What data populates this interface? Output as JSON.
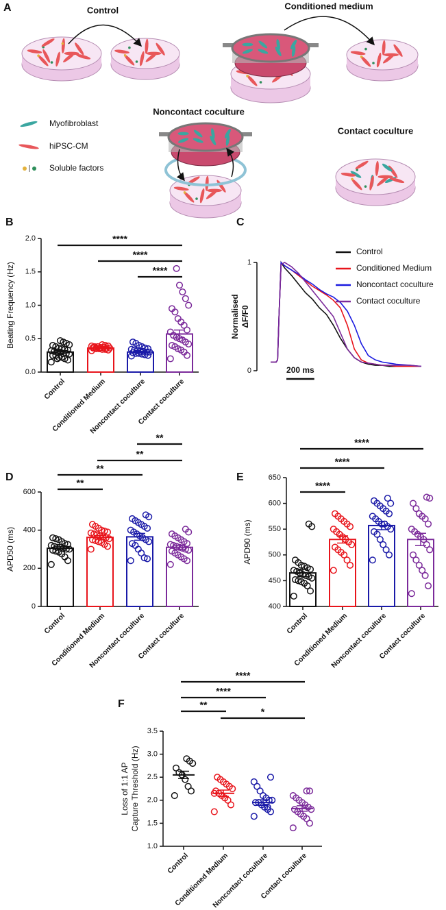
{
  "diagram": {
    "panel": "A",
    "labels": {
      "control": "Control",
      "conditioned": "Conditioned medium",
      "noncontact": "Noncontact coculture",
      "contact": "Contact coculture"
    },
    "legend": [
      "Myofibroblast",
      "hiPSC-CM",
      "Soluble factors"
    ]
  },
  "chart_data": [
    {
      "type": "bar",
      "panel": "B",
      "ylabel": [
        "Beating  Frequency (Hz)"
      ],
      "categories": [
        "Control",
        "Conditioned Medium",
        "Noncontact coculture",
        "Contact coculture"
      ],
      "colors": [
        "#111111",
        "#e8141b",
        "#1a1aa8",
        "#7b2a9a"
      ],
      "values": [
        0.3,
        0.36,
        0.3,
        0.57
      ],
      "errors": [
        0.02,
        0.01,
        0.01,
        0.06
      ],
      "points": [
        [
          0.15,
          0.18,
          0.2,
          0.22,
          0.22,
          0.25,
          0.25,
          0.27,
          0.28,
          0.28,
          0.3,
          0.3,
          0.31,
          0.32,
          0.33,
          0.34,
          0.35,
          0.36,
          0.38,
          0.4,
          0.41,
          0.43,
          0.45,
          0.47,
          0.2
        ],
        [
          0.32,
          0.33,
          0.34,
          0.34,
          0.35,
          0.35,
          0.36,
          0.36,
          0.36,
          0.37,
          0.37,
          0.38,
          0.38,
          0.39,
          0.39,
          0.4,
          0.41,
          0.35,
          0.36,
          0.37
        ],
        [
          0.24,
          0.25,
          0.26,
          0.27,
          0.28,
          0.28,
          0.29,
          0.3,
          0.3,
          0.31,
          0.31,
          0.32,
          0.33,
          0.34,
          0.35,
          0.36,
          0.38,
          0.4,
          0.43,
          0.45
        ],
        [
          0.2,
          0.25,
          0.3,
          0.33,
          0.35,
          0.38,
          0.4,
          0.42,
          0.45,
          0.48,
          0.5,
          0.52,
          0.55,
          0.6,
          0.63,
          0.7,
          0.75,
          0.8,
          0.9,
          0.95,
          1.0,
          1.1,
          1.2,
          1.3,
          1.55
        ]
      ],
      "ylim": [
        0,
        2
      ],
      "yticks": [
        {
          "value": 0,
          "label": "0.0"
        },
        0.5,
        {
          "value": 1,
          "label": "1.0"
        },
        1.5,
        {
          "value": 2,
          "label": "2.0"
        }
      ],
      "significance": [
        {
          "label": "****",
          "span": [
            0,
            3
          ]
        },
        {
          "label": "****",
          "span": [
            1,
            3
          ]
        },
        {
          "label": "****",
          "span": [
            2,
            3
          ]
        }
      ]
    },
    {
      "type": "line",
      "panel": "C",
      "ylabel": [
        "Normalised",
        "ΔF/F0"
      ],
      "x": [
        0,
        40,
        50,
        60,
        75,
        100,
        150,
        200,
        250,
        300,
        350,
        400,
        450,
        500,
        550,
        600,
        650,
        700,
        750,
        800,
        850,
        900,
        1000,
        1080
      ],
      "xlim": [
        0,
        1080
      ],
      "ylim": [
        0,
        1
      ],
      "yticks": [
        0,
        1
      ],
      "scalebar": {
        "value": 200,
        "label": "200 ms"
      },
      "series": [
        {
          "name": "Control",
          "color": "#111111",
          "values": [
            0.08,
            0.08,
            0.1,
            0.5,
            1.0,
            0.95,
            0.88,
            0.8,
            0.72,
            0.66,
            0.58,
            0.52,
            0.42,
            0.3,
            0.2,
            0.12,
            0.08,
            0.06,
            0.05,
            0.05,
            0.04,
            0.04,
            0.04,
            0.04
          ]
        },
        {
          "name": "Conditioned Medium",
          "color": "#e8141b",
          "values": [
            0.08,
            0.08,
            0.1,
            0.5,
            1.0,
            0.97,
            0.93,
            0.88,
            0.83,
            0.78,
            0.74,
            0.7,
            0.65,
            0.58,
            0.42,
            0.2,
            0.1,
            0.07,
            0.06,
            0.05,
            0.05,
            0.04,
            0.04,
            0.04
          ]
        },
        {
          "name": "Noncontact coculture",
          "color": "#1a1ae0",
          "values": [
            0.08,
            0.08,
            0.1,
            0.5,
            1.0,
            0.97,
            0.93,
            0.89,
            0.84,
            0.8,
            0.75,
            0.71,
            0.68,
            0.63,
            0.55,
            0.42,
            0.25,
            0.14,
            0.1,
            0.08,
            0.07,
            0.06,
            0.05,
            0.04
          ]
        },
        {
          "name": "Contact coculture",
          "color": "#7b2a9a",
          "values": [
            0.08,
            0.08,
            0.1,
            0.5,
            0.98,
            1.0,
            0.96,
            0.9,
            0.82,
            0.74,
            0.66,
            0.58,
            0.5,
            0.35,
            0.2,
            0.12,
            0.08,
            0.07,
            0.06,
            0.05,
            0.05,
            0.05,
            0.05,
            0.04
          ]
        }
      ]
    },
    {
      "type": "bar",
      "panel": "D",
      "ylabel": [
        "APD50 (ms)"
      ],
      "categories": [
        "Control",
        "Conditioned Medium",
        "Noncontact coculture",
        "Contact coculture"
      ],
      "colors": [
        "#111111",
        "#e8141b",
        "#1a1aa8",
        "#7b2a9a"
      ],
      "values": [
        305,
        362,
        365,
        310
      ],
      "errors": [
        8,
        10,
        18,
        10
      ],
      "points": [
        [
          220,
          240,
          260,
          275,
          285,
          290,
          295,
          300,
          300,
          305,
          310,
          310,
          315,
          320,
          325,
          330,
          340,
          350,
          355,
          360
        ],
        [
          300,
          315,
          325,
          335,
          340,
          345,
          350,
          355,
          360,
          365,
          370,
          375,
          380,
          385,
          390,
          395,
          400,
          410,
          420,
          430
        ],
        [
          240,
          250,
          255,
          280,
          300,
          320,
          330,
          340,
          350,
          360,
          370,
          380,
          390,
          400,
          410,
          420,
          430,
          440,
          450,
          460,
          470,
          480
        ],
        [
          220,
          240,
          250,
          260,
          270,
          280,
          290,
          295,
          300,
          305,
          310,
          315,
          320,
          325,
          330,
          340,
          350,
          360,
          370,
          380,
          390,
          405
        ]
      ],
      "ylim": [
        0,
        600
      ],
      "yticks": [
        0,
        200,
        400,
        600
      ],
      "significance": [
        {
          "label": "**",
          "span": [
            0,
            1
          ]
        },
        {
          "label": "**",
          "span": [
            0,
            2
          ]
        },
        {
          "label": "**",
          "span": [
            1,
            3
          ]
        },
        {
          "label": "**",
          "span": [
            2,
            3
          ]
        }
      ]
    },
    {
      "type": "bar",
      "panel": "E",
      "ylabel": [
        "APD90 (ms)"
      ],
      "categories": [
        "Control",
        "Conditioned Medium",
        "Noncontact coculture",
        "Contact coculture"
      ],
      "colors": [
        "#111111",
        "#e8141b",
        "#1a1aa8",
        "#7b2a9a"
      ],
      "values": [
        465,
        530,
        557,
        530
      ],
      "errors": [
        7,
        7,
        8,
        12
      ],
      "points": [
        [
          420,
          430,
          440,
          445,
          448,
          450,
          452,
          455,
          458,
          460,
          462,
          465,
          468,
          470,
          472,
          475,
          478,
          480,
          485,
          490,
          555,
          560
        ],
        [
          470,
          480,
          490,
          500,
          505,
          510,
          515,
          520,
          525,
          530,
          535,
          540,
          545,
          550,
          555,
          560,
          565,
          570,
          575,
          580
        ],
        [
          490,
          500,
          510,
          520,
          530,
          540,
          545,
          550,
          555,
          560,
          560,
          565,
          570,
          575,
          580,
          585,
          590,
          595,
          600,
          605,
          600,
          610
        ],
        [
          425,
          440,
          460,
          470,
          480,
          490,
          500,
          510,
          520,
          530,
          535,
          540,
          545,
          550,
          560,
          570,
          575,
          580,
          590,
          600,
          610,
          612
        ]
      ],
      "ylim": [
        400,
        650
      ],
      "yticks": [
        400,
        450,
        500,
        550,
        600,
        650
      ],
      "significance": [
        {
          "label": "****",
          "span": [
            0,
            1
          ]
        },
        {
          "label": "****",
          "span": [
            0,
            2
          ]
        },
        {
          "label": "****",
          "span": [
            0,
            3
          ]
        }
      ]
    },
    {
      "type": "dot",
      "panel": "F",
      "ylabel": [
        "Loss of 1:1 AP",
        "Capture Threshold (Hz)"
      ],
      "categories": [
        "Control",
        "Conditioned Medium",
        "Noncontact coculture",
        "Contact coculture"
      ],
      "colors": [
        "#111111",
        "#e8141b",
        "#1a1aa8",
        "#7b2a9a"
      ],
      "values": [
        2.55,
        2.15,
        1.95,
        1.82
      ],
      "errors": [
        0.08,
        0.07,
        0.06,
        0.06
      ],
      "points": [
        [
          2.1,
          2.2,
          2.3,
          2.45,
          2.55,
          2.6,
          2.7,
          2.8,
          2.85,
          2.9
        ],
        [
          1.75,
          1.9,
          2.0,
          2.05,
          2.1,
          2.15,
          2.2,
          2.25,
          2.3,
          2.35,
          2.4,
          2.45,
          2.5,
          2.15
        ],
        [
          1.65,
          1.75,
          1.8,
          1.85,
          1.9,
          1.95,
          1.95,
          2.0,
          2.0,
          2.05,
          2.1,
          2.2,
          2.3,
          2.4,
          2.5,
          1.85
        ],
        [
          1.4,
          1.5,
          1.6,
          1.65,
          1.7,
          1.75,
          1.8,
          1.8,
          1.85,
          1.9,
          1.95,
          2.0,
          2.05,
          2.1,
          2.2,
          2.2
        ]
      ],
      "ylim": [
        1,
        3.5
      ],
      "yticks": [
        {
          "value": 1,
          "label": "1.0"
        },
        1.5,
        {
          "value": 2,
          "label": "2.0"
        },
        2.5,
        {
          "value": 3,
          "label": "3.0"
        },
        3.5
      ],
      "significance": [
        {
          "label": "**",
          "span": [
            0,
            1
          ]
        },
        {
          "label": "****",
          "span": [
            0,
            2
          ]
        },
        {
          "label": "****",
          "span": [
            0,
            3
          ]
        },
        {
          "label": "*",
          "span": [
            1,
            3
          ]
        }
      ]
    }
  ]
}
